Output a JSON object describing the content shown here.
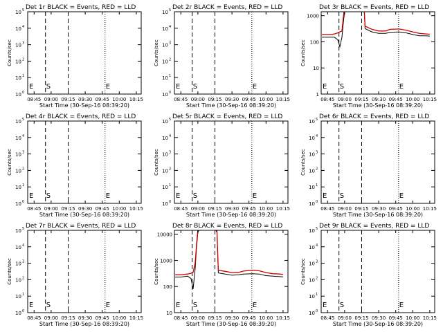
{
  "chart_data": [
    {
      "type": "line",
      "title": "Det 1r BLACK = Events, RED = LLD",
      "xlabel": "Start Time (30-Sep-16 08:39:20)",
      "ylabel": "Counts/sec",
      "y_scale": "log",
      "y_tick_labels": [
        "10",
        "10",
        "10",
        "10",
        "10",
        "10"
      ],
      "y_tick_exponents": [
        "5",
        "4",
        "3",
        "2",
        "1",
        "0"
      ],
      "x_tick_labels": [
        "08:45",
        "09:00",
        "09:15",
        "09:30",
        "09:45",
        "10:00",
        "10:15"
      ],
      "markers": [
        "E",
        "S",
        "E"
      ],
      "series": []
    },
    {
      "type": "line",
      "title": "Det 2r BLACK = Events, RED = LLD",
      "xlabel": "Start Time (30-Sep-16 08:39:20)",
      "ylabel": "Counts/sec",
      "y_scale": "log",
      "y_tick_labels": [
        "10",
        "10",
        "10",
        "10",
        "10",
        "10"
      ],
      "y_tick_exponents": [
        "5",
        "4",
        "3",
        "2",
        "1",
        "0"
      ],
      "x_tick_labels": [
        "08:45",
        "09:00",
        "09:15",
        "09:30",
        "09:45",
        "10:00",
        "10:15"
      ],
      "markers": [
        "E",
        "S",
        "E"
      ],
      "series": []
    },
    {
      "type": "line",
      "title": "Det 3r BLACK = Events, RED = LLD",
      "xlabel": "Start Time (30-Sep-16 08:39:20)",
      "ylabel": "Counts/sec",
      "y_scale": "log",
      "y_tick_labels": [
        "1000",
        "100",
        "10",
        "1"
      ],
      "y_tick_exponents": [
        "",
        "",
        "",
        ""
      ],
      "x_tick_labels": [
        "08:45",
        "09:00",
        "09:15",
        "09:30",
        "09:45",
        "10:00",
        "10:15"
      ],
      "markers": [
        "E",
        "S",
        "E"
      ],
      "series": [
        {
          "color": "#000000",
          "x": [
            8.667,
            8.75,
            8.8,
            8.85,
            8.9,
            8.93,
            8.96,
            8.98,
            9.0,
            9.05,
            9.1,
            9.2,
            9.28,
            9.3,
            9.4,
            9.5,
            9.6,
            9.67,
            9.8,
            9.9,
            10.0,
            10.1,
            10.2,
            10.25
          ],
          "y": [
            150,
            150,
            150,
            150,
            120,
            65,
            150,
            500,
            1500,
            4000,
            6000,
            8000,
            4000,
            320,
            240,
            210,
            210,
            230,
            240,
            220,
            190,
            170,
            170,
            165
          ]
        },
        {
          "color": "#d00000",
          "x": [
            8.667,
            8.75,
            8.8,
            8.85,
            8.9,
            8.93,
            8.96,
            8.98,
            9.0,
            9.05,
            9.1,
            9.2,
            9.28,
            9.3,
            9.4,
            9.5,
            9.6,
            9.67,
            9.8,
            9.9,
            10.0,
            10.1,
            10.2,
            10.25
          ],
          "y": [
            190,
            190,
            190,
            200,
            220,
            240,
            260,
            800,
            2500,
            6000,
            8000,
            9000,
            5000,
            400,
            300,
            260,
            260,
            300,
            310,
            280,
            240,
            210,
            200,
            195
          ]
        }
      ]
    },
    {
      "type": "line",
      "title": "Det 4r BLACK = Events, RED = LLD",
      "xlabel": "Start Time (30-Sep-16 08:39:20)",
      "ylabel": "Counts/sec",
      "y_scale": "log",
      "y_tick_labels": [
        "10",
        "10",
        "10",
        "10",
        "10",
        "10"
      ],
      "y_tick_exponents": [
        "5",
        "4",
        "3",
        "2",
        "1",
        "0"
      ],
      "x_tick_labels": [
        "08:45",
        "09:00",
        "09:15",
        "09:30",
        "09:45",
        "10:00",
        "10:15"
      ],
      "markers": [
        "E",
        "S",
        "E"
      ],
      "series": []
    },
    {
      "type": "line",
      "title": "Det 5r BLACK = Events, RED = LLD",
      "xlabel": "Start Time (30-Sep-16 08:39:20)",
      "ylabel": "Counts/sec",
      "y_scale": "log",
      "y_tick_labels": [
        "10",
        "10",
        "10",
        "10",
        "10",
        "10"
      ],
      "y_tick_exponents": [
        "5",
        "4",
        "3",
        "2",
        "1",
        "0"
      ],
      "x_tick_labels": [
        "08:45",
        "09:00",
        "09:15",
        "09:30",
        "09:45",
        "10:00",
        "10:15"
      ],
      "markers": [
        "E",
        "S",
        "E"
      ],
      "series": []
    },
    {
      "type": "line",
      "title": "Det 6r BLACK = Events, RED = LLD",
      "xlabel": "Start Time (30-Sep-16 08:39:20)",
      "ylabel": "Counts/sec",
      "y_scale": "log",
      "y_tick_labels": [
        "10",
        "10",
        "10",
        "10",
        "10",
        "10"
      ],
      "y_tick_exponents": [
        "5",
        "4",
        "3",
        "2",
        "1",
        "0"
      ],
      "x_tick_labels": [
        "08:45",
        "09:00",
        "09:15",
        "09:30",
        "09:45",
        "10:00",
        "10:15"
      ],
      "markers": [
        "E",
        "S",
        "E"
      ],
      "series": []
    },
    {
      "type": "line",
      "title": "Det 7r BLACK = Events, RED = LLD",
      "xlabel": "Start Time (30-Sep-16 08:39:20)",
      "ylabel": "Counts/sec",
      "y_scale": "log",
      "y_tick_labels": [
        "10",
        "10",
        "10",
        "10",
        "10",
        "10"
      ],
      "y_tick_exponents": [
        "5",
        "4",
        "3",
        "2",
        "1",
        "0"
      ],
      "x_tick_labels": [
        "08:45",
        "09:00",
        "09:15",
        "09:30",
        "09:45",
        "10:00",
        "10:15"
      ],
      "markers": [
        "E",
        "S",
        "E"
      ],
      "series": []
    },
    {
      "type": "line",
      "title": "Det 8r BLACK = Events, RED = LLD",
      "xlabel": "Start Time (30-Sep-16 08:39:20)",
      "ylabel": "Counts/sec",
      "y_scale": "log",
      "y_tick_labels": [
        "10000",
        "1000",
        "100",
        "10"
      ],
      "y_tick_exponents": [
        "",
        "",
        "",
        ""
      ],
      "x_tick_labels": [
        "08:45",
        "09:00",
        "09:15",
        "09:30",
        "09:45",
        "10:00",
        "10:15"
      ],
      "markers": [
        "E",
        "S",
        "E"
      ],
      "series": [
        {
          "color": "#000000",
          "x": [
            8.667,
            8.75,
            8.8,
            8.85,
            8.9,
            8.93,
            8.96,
            8.98,
            9.0,
            9.05,
            9.1,
            9.2,
            9.28,
            9.3,
            9.4,
            9.5,
            9.6,
            9.67,
            9.8,
            9.9,
            10.0,
            10.1,
            10.2,
            10.25
          ],
          "y": [
            230,
            230,
            240,
            250,
            200,
            80,
            500,
            3000,
            12000,
            20000,
            25000,
            25000,
            12000,
            330,
            300,
            270,
            280,
            300,
            310,
            300,
            260,
            250,
            240,
            235
          ]
        },
        {
          "color": "#d00000",
          "x": [
            8.667,
            8.75,
            8.8,
            8.85,
            8.9,
            8.93,
            8.96,
            8.98,
            9.0,
            9.05,
            9.1,
            9.2,
            9.28,
            9.3,
            9.4,
            9.5,
            9.6,
            9.67,
            9.8,
            9.9,
            10.0,
            10.1,
            10.2,
            10.25
          ],
          "y": [
            280,
            280,
            290,
            300,
            320,
            350,
            800,
            4000,
            15000,
            25000,
            30000,
            30000,
            15000,
            420,
            380,
            340,
            350,
            390,
            420,
            400,
            340,
            310,
            300,
            290
          ]
        }
      ]
    },
    {
      "type": "line",
      "title": "Det 9r BLACK = Events, RED = LLD",
      "xlabel": "Start Time (30-Sep-16 08:39:20)",
      "ylabel": "Counts/sec",
      "y_scale": "log",
      "y_tick_labels": [
        "10",
        "10",
        "10",
        "10",
        "10",
        "10"
      ],
      "y_tick_exponents": [
        "5",
        "4",
        "3",
        "2",
        "1",
        "0"
      ],
      "x_tick_labels": [
        "08:45",
        "09:00",
        "09:15",
        "09:30",
        "09:45",
        "10:00",
        "10:15"
      ],
      "markers": [
        "E",
        "S",
        "E"
      ],
      "series": []
    }
  ]
}
